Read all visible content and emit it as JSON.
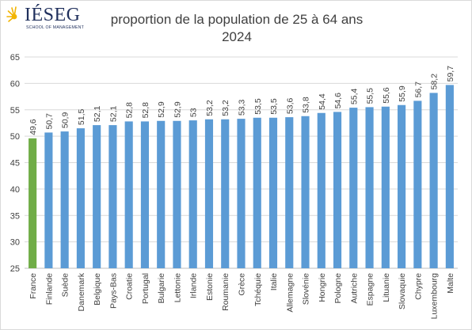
{
  "logo": {
    "name": "IÉSEG",
    "tagline": "SCHOOL OF MANAGEMENT"
  },
  "chart_data": {
    "type": "bar",
    "title": "proportion de la population de 25 à 64 ans",
    "subtitle": "2024",
    "xlabel": "",
    "ylabel": "",
    "ylim": [
      25,
      65
    ],
    "yticks": [
      25,
      30,
      35,
      40,
      45,
      50,
      55,
      60,
      65
    ],
    "grid": true,
    "legend": "none",
    "categories": [
      "France",
      "Finlande",
      "Suède",
      "Danemark",
      "Belgique",
      "Pays-Bas",
      "Croatie",
      "Portugal",
      "Bulgarie",
      "Lettonie",
      "Irlande",
      "Estonie",
      "Roumanie",
      "Grèce",
      "Tchéquie",
      "Italie",
      "Allemagne",
      "Slovénie",
      "Hongrie",
      "Pologne",
      "Autriche",
      "Espagne",
      "Lituanie",
      "Slovaquie",
      "Chypre",
      "Luxembourg",
      "Malte"
    ],
    "values": [
      49.6,
      50.7,
      50.9,
      51.5,
      52.1,
      52.1,
      52.8,
      52.8,
      52.9,
      52.9,
      53,
      53.2,
      53.2,
      53.3,
      53.5,
      53.5,
      53.6,
      53.8,
      54.4,
      54.6,
      55.4,
      55.5,
      55.6,
      55.9,
      56.7,
      58.2,
      59.7
    ],
    "data_labels": [
      "49,6",
      "50,7",
      "50,9",
      "51,5",
      "52,1",
      "52,1",
      "52,8",
      "52,8",
      "52,9",
      "52,9",
      "53",
      "53,2",
      "53,2",
      "53,3",
      "53,5",
      "53,5",
      "53,6",
      "53,8",
      "54,4",
      "54,6",
      "55,4",
      "55,5",
      "55,6",
      "55,9",
      "56,7",
      "58,2",
      "59,7"
    ],
    "colors": {
      "default": "#5b9bd5",
      "highlight": "#70ad47",
      "highlight_category": "France",
      "grid": "#d9d9d9",
      "axis": "#bfbfbf"
    }
  }
}
